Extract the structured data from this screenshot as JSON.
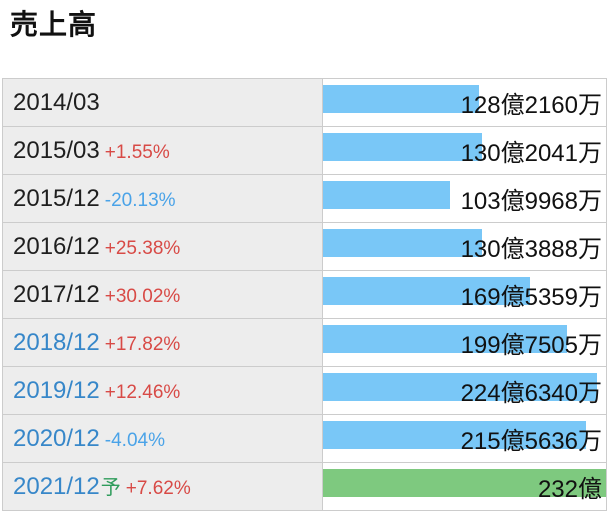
{
  "page": {
    "title": "売上高"
  },
  "colors": {
    "bar_actual": "#79c7f7",
    "bar_forecast": "#7ec97f",
    "change_positive": "#d84a46",
    "change_negative": "#4aa3e8",
    "year_link": "#3787c9",
    "year_plain": "#1f1f1f",
    "forecast_mark": "#2f9c5c",
    "row_label_bg": "#ededed",
    "table_border": "#cccccc"
  },
  "table": {
    "rows": [
      {
        "year": "2014/03",
        "mark": "",
        "change": "",
        "value": "128億2160万",
        "bar_width": "55.3%",
        "bar_color": "#79c7f7",
        "year_color": "#1f1f1f",
        "change_color": "#d84a46"
      },
      {
        "year": "2015/03",
        "mark": "",
        "change": "+1.55%",
        "value": "130億2041万",
        "bar_width": "56.1%",
        "bar_color": "#79c7f7",
        "year_color": "#1f1f1f",
        "change_color": "#d84a46"
      },
      {
        "year": "2015/12",
        "mark": "",
        "change": "-20.13%",
        "value": "103億9968万",
        "bar_width": "44.8%",
        "bar_color": "#79c7f7",
        "year_color": "#1f1f1f",
        "change_color": "#4aa3e8"
      },
      {
        "year": "2016/12",
        "mark": "",
        "change": "+25.38%",
        "value": "130億3888万",
        "bar_width": "56.2%",
        "bar_color": "#79c7f7",
        "year_color": "#1f1f1f",
        "change_color": "#d84a46"
      },
      {
        "year": "2017/12",
        "mark": "",
        "change": "+30.02%",
        "value": "169億5359万",
        "bar_width": "73.1%",
        "bar_color": "#79c7f7",
        "year_color": "#1f1f1f",
        "change_color": "#d84a46"
      },
      {
        "year": "2018/12",
        "mark": "",
        "change": "+17.82%",
        "value": "199億7505万",
        "bar_width": "86.1%",
        "bar_color": "#79c7f7",
        "year_color": "#3787c9",
        "change_color": "#d84a46"
      },
      {
        "year": "2019/12",
        "mark": "",
        "change": "+12.46%",
        "value": "224億6340万",
        "bar_width": "96.8%",
        "bar_color": "#79c7f7",
        "year_color": "#3787c9",
        "change_color": "#d84a46"
      },
      {
        "year": "2020/12",
        "mark": "",
        "change": "-4.04%",
        "value": "215億5636万",
        "bar_width": "92.9%",
        "bar_color": "#79c7f7",
        "year_color": "#3787c9",
        "change_color": "#4aa3e8"
      },
      {
        "year": "2021/12",
        "mark": "予",
        "change": "+7.62%",
        "value": "232億",
        "bar_width": "100%",
        "bar_color": "#7ec97f",
        "year_color": "#3787c9",
        "change_color": "#d84a46"
      }
    ]
  },
  "chart_data": {
    "type": "bar",
    "orientation": "horizontal",
    "title": "売上高",
    "categories": [
      "2014/03",
      "2015/03",
      "2015/12",
      "2016/12",
      "2017/12",
      "2018/12",
      "2019/12",
      "2020/12",
      "2021/12予"
    ],
    "values": [
      128.216,
      130.2041,
      103.9968,
      130.3888,
      169.5359,
      199.7505,
      224.634,
      215.5636,
      232.0
    ],
    "unit": "億円",
    "value_labels": [
      "128億2160万",
      "130億2041万",
      "103億9968万",
      "130億3888万",
      "169億5359万",
      "199億7505万",
      "224億6340万",
      "215億5636万",
      "232億"
    ],
    "change_labels": [
      "",
      "+1.55%",
      "-20.13%",
      "+25.38%",
      "+30.02%",
      "+17.82%",
      "+12.46%",
      "-4.04%",
      "+7.62%"
    ],
    "xlim": [
      0,
      232
    ],
    "grid": false,
    "legend": false,
    "bar_colors": {
      "actual": "#79c7f7",
      "forecast": "#7ec97f"
    },
    "forecast_index": 8
  }
}
